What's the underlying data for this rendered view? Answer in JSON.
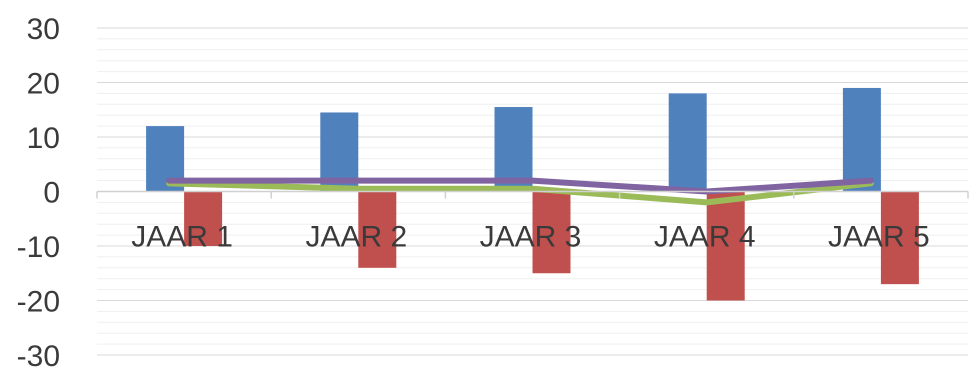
{
  "chart_data": {
    "type": "bar",
    "categories": [
      "JAAR 1",
      "JAAR 2",
      "JAAR 3",
      "JAAR 4",
      "JAAR 5"
    ],
    "series": [
      {
        "type": "bar",
        "color": "#4f81bd",
        "values": [
          12,
          14.5,
          15.5,
          18,
          19
        ]
      },
      {
        "type": "bar",
        "color": "#c0504d",
        "values": [
          -10,
          -14,
          -15,
          -20,
          -17
        ]
      },
      {
        "type": "line",
        "color": "#9bbb59",
        "values": [
          1.5,
          0.5,
          0.5,
          -2,
          1.5
        ]
      },
      {
        "type": "line",
        "color": "#8064a2",
        "values": [
          2,
          2,
          2,
          0,
          2
        ]
      }
    ],
    "yticks": [
      30,
      20,
      10,
      0,
      -10,
      -20,
      -30
    ],
    "ylim": [
      -30,
      30
    ],
    "grid": true,
    "minor_grid": true,
    "legend": "none"
  }
}
